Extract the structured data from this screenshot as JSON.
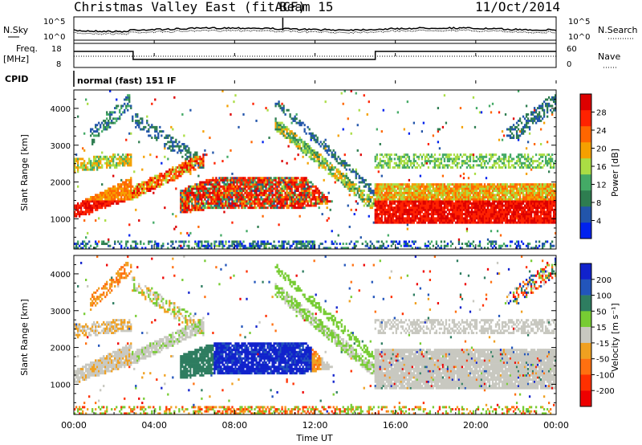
{
  "header": {
    "title": "Christmas Valley East (fitACF)",
    "beam": "Beam 15",
    "date": "11/Oct/2014"
  },
  "top_panels": {
    "nsky_label": "N.Sky",
    "nsky_ticks": [
      "10^5",
      "10^0"
    ],
    "nsearch_label": "N.Search",
    "nsearch_ticks": [
      "10^5",
      "10^0"
    ],
    "freq_label_1": "Freq.",
    "freq_label_2": "[MHz]",
    "freq_ticks": [
      "18",
      "8"
    ],
    "nave_label": "Nave",
    "nave_ticks": [
      "60",
      "0"
    ],
    "cpid_label": "CPID",
    "cpid_value": "normal (fast) 151 IF"
  },
  "colors": {
    "power": [
      "#0022ee",
      "#2255aa",
      "#2e7d50",
      "#44aa66",
      "#aadd44",
      "#f5a000",
      "#ff6600",
      "#ff2200",
      "#dd0000"
    ],
    "velocity": [
      "#1122cc",
      "#2255bb",
      "#2e7d60",
      "#77cc33",
      "#c8c8c0",
      "#f0a020",
      "#ff7010",
      "#ff3000",
      "#ee0000"
    ]
  },
  "chart_data": [
    {
      "type": "heatmap",
      "name": "power",
      "ylabel": "Slant Range [km]",
      "ylim": [
        180,
        4500
      ],
      "yticks": [
        1000,
        2000,
        3000,
        4000
      ],
      "xlim": [
        0,
        24
      ],
      "colorbar": {
        "label": "Power [dB]",
        "range": [
          0,
          32
        ],
        "ticks": [
          "4",
          "8",
          "12",
          "16",
          "20",
          "24",
          "28"
        ]
      }
    },
    {
      "type": "heatmap",
      "name": "velocity",
      "ylabel": "Slant Range [km]",
      "ylim": [
        180,
        4500
      ],
      "yticks": [
        1000,
        2000,
        3000,
        4000
      ],
      "xlim": [
        0,
        24
      ],
      "xticks": [
        "00:00",
        "04:00",
        "08:00",
        "12:00",
        "16:00",
        "20:00",
        "00:00"
      ],
      "xlabel": "Time UT",
      "colorbar": {
        "label": "Velocity [m s⁻¹]",
        "ticks": [
          "200",
          "100",
          "50",
          "15",
          "-15",
          "-50",
          "-100",
          "-200"
        ]
      }
    }
  ]
}
